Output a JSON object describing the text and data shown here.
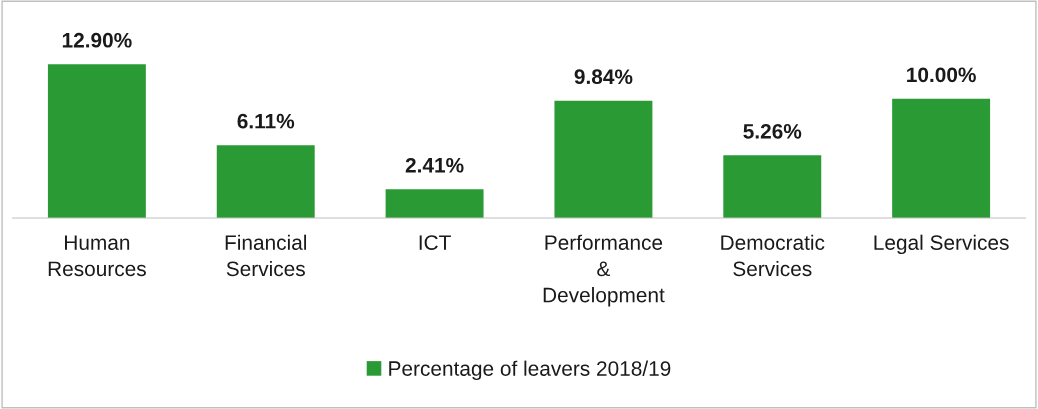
{
  "chart_data": {
    "type": "bar",
    "categories": [
      "Human\nResources",
      "Financial\nServices",
      "ICT",
      "Performance\n&\nDevelopment",
      "Democratic\nServices",
      "Legal Services"
    ],
    "series": [
      {
        "name": "Percentage of leavers 2018/19",
        "color": "#2a9a35",
        "values": [
          12.9,
          6.11,
          2.41,
          9.84,
          5.26,
          10.0
        ],
        "value_labels": [
          "12.90%",
          "6.11%",
          "2.41%",
          "9.84%",
          "5.26%",
          "10.00%"
        ]
      }
    ],
    "tick_labels": "x",
    "grid": false,
    "legend": "bottom"
  }
}
